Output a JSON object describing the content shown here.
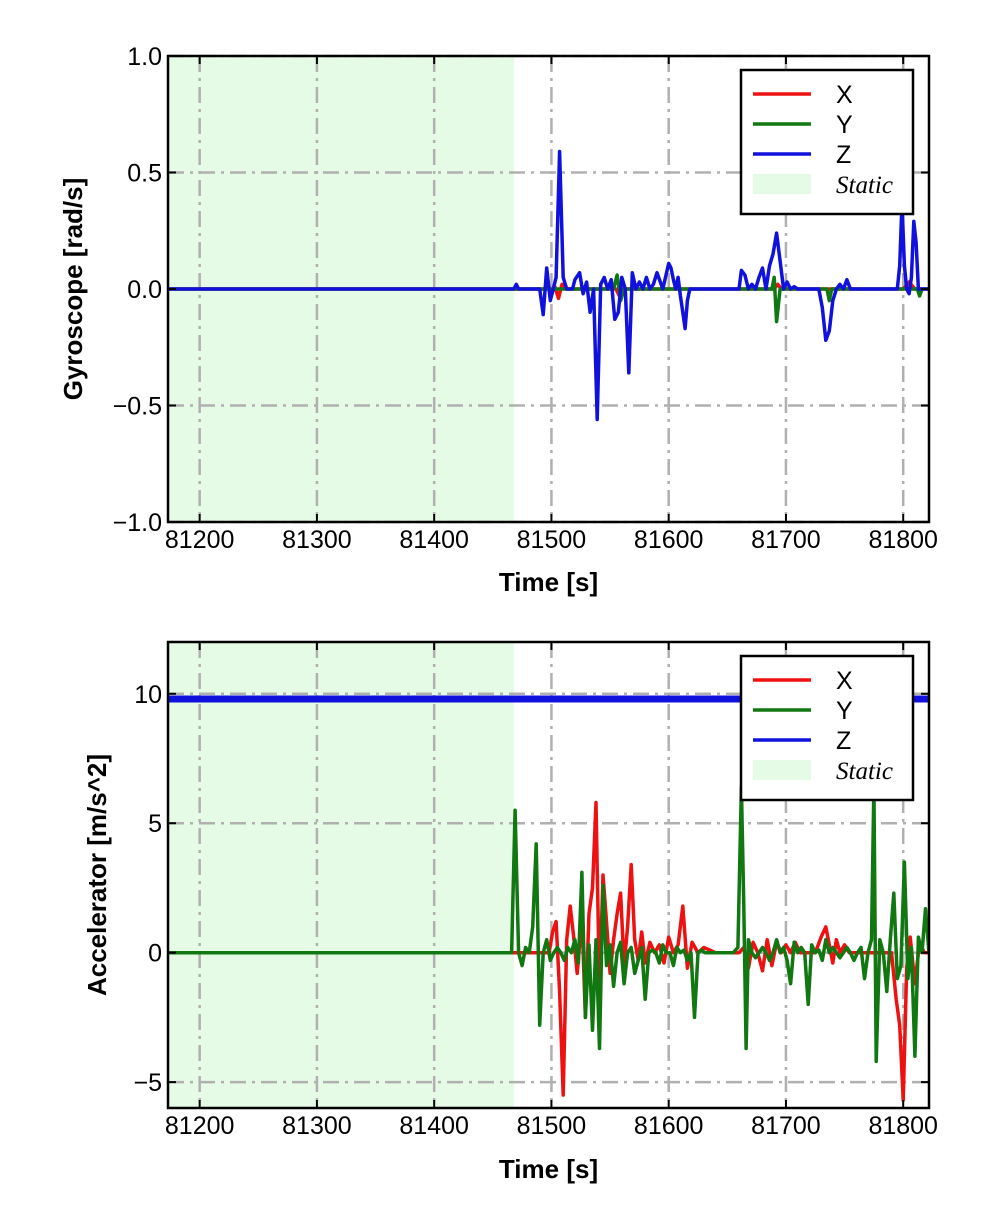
{
  "chart_data": [
    {
      "type": "line",
      "xlabel": "Time [s]",
      "ylabel": "Gyroscope [rad/s]",
      "xlim": [
        81173,
        81822
      ],
      "ylim": [
        -1.0,
        1.0
      ],
      "xticks": [
        81200,
        81300,
        81400,
        81500,
        81600,
        81700,
        81800
      ],
      "xtick_labels": [
        "81200",
        "81300",
        "81400",
        "81500",
        "81600",
        "81700",
        "81800"
      ],
      "yticks": [
        1.0,
        0.5,
        0.0,
        -0.5,
        -1.0
      ],
      "ytick_labels": [
        "1.0",
        "0.5",
        "0.0",
        "−0.5",
        "−1.0"
      ],
      "grid": true,
      "legend_position": "top-right",
      "static_region": {
        "label": "Static",
        "x_start": 81173,
        "x_end": 81468,
        "color": "#e6fbe6"
      },
      "series": [
        {
          "name": "X",
          "color": "#ee1111",
          "x": [
            81173,
            81495,
            81497,
            81500,
            81503,
            81506,
            81509,
            81512,
            81515,
            81555,
            81558,
            81561,
            81600,
            81615,
            81690,
            81693,
            81696,
            81800,
            81805,
            81810,
            81822
          ],
          "y": [
            0.0,
            0.0,
            0.02,
            -0.02,
            0.01,
            -0.04,
            0.02,
            0.0,
            0.0,
            0.0,
            -0.03,
            0.0,
            0.0,
            0.0,
            0.0,
            0.02,
            0.0,
            0.0,
            0.03,
            0.0,
            0.0
          ]
        },
        {
          "name": "Y",
          "color": "#117711",
          "x": [
            81173,
            81553,
            81556,
            81559,
            81562,
            81688,
            81690,
            81692,
            81695,
            81735,
            81737,
            81739,
            81812,
            81814,
            81816,
            81822
          ],
          "y": [
            0.0,
            0.0,
            0.06,
            -0.05,
            0.0,
            0.0,
            0.05,
            -0.14,
            0.0,
            0.0,
            -0.05,
            0.0,
            0.0,
            -0.03,
            0.0,
            0.0
          ]
        },
        {
          "name": "Z",
          "color": "#1111dd",
          "x": [
            81173,
            81468,
            81470,
            81472,
            81490,
            81493,
            81496,
            81499,
            81502,
            81504,
            81507,
            81510,
            81513,
            81518,
            81520,
            81524,
            81527,
            81530,
            81533,
            81536,
            81539,
            81542,
            81545,
            81548,
            81551,
            81554,
            81557,
            81560,
            81563,
            81566,
            81569,
            81572,
            81575,
            81578,
            81581,
            81584,
            81587,
            81590,
            81595,
            81600,
            81602,
            81604,
            81606,
            81608,
            81610,
            81612,
            81614,
            81616,
            81618,
            81620,
            81660,
            81662,
            81665,
            81668,
            81671,
            81674,
            81677,
            81680,
            81683,
            81686,
            81689,
            81692,
            81695,
            81698,
            81701,
            81704,
            81707,
            81710,
            81728,
            81731,
            81734,
            81737,
            81740,
            81743,
            81746,
            81749,
            81752,
            81755,
            81758,
            81795,
            81797,
            81799,
            81801,
            81803,
            81805,
            81807,
            81809,
            81811,
            81813,
            81815,
            81817,
            81820,
            81822
          ],
          "y": [
            0.0,
            0.0,
            0.02,
            0.0,
            0.0,
            -0.11,
            0.09,
            -0.05,
            0.01,
            0.05,
            0.59,
            0.05,
            0.0,
            0.0,
            0.04,
            0.07,
            -0.02,
            0.03,
            -0.1,
            0.0,
            -0.56,
            0.02,
            0.05,
            0.0,
            0.04,
            -0.13,
            -0.1,
            0.05,
            0.0,
            -0.36,
            0.07,
            0.0,
            0.03,
            0.0,
            0.05,
            0.0,
            0.02,
            0.07,
            0.0,
            0.11,
            0.09,
            0.04,
            0.0,
            0.05,
            -0.03,
            -0.1,
            -0.17,
            -0.05,
            0.0,
            0.0,
            0.0,
            0.08,
            0.06,
            0.0,
            0.02,
            0.0,
            0.05,
            0.09,
            0.0,
            0.1,
            0.15,
            0.24,
            0.12,
            0.0,
            0.03,
            0.0,
            0.01,
            0.0,
            0.0,
            -0.08,
            -0.22,
            -0.18,
            -0.05,
            0.0,
            0.02,
            0.0,
            0.04,
            0.0,
            0.0,
            0.0,
            0.1,
            0.37,
            0.1,
            0.0,
            -0.02,
            0.05,
            0.29,
            0.2,
            0.0,
            0.0,
            0.0,
            0.0,
            0.0
          ]
        }
      ]
    },
    {
      "type": "line",
      "xlabel": "Time [s]",
      "ylabel": "Accelerator [m/s^2]",
      "xlim": [
        81173,
        81822
      ],
      "ylim": [
        -6,
        12
      ],
      "xticks": [
        81200,
        81300,
        81400,
        81500,
        81600,
        81700,
        81800
      ],
      "xtick_labels": [
        "81200",
        "81300",
        "81400",
        "81500",
        "81600",
        "81700",
        "81800"
      ],
      "yticks": [
        10,
        5,
        0,
        -5
      ],
      "ytick_labels": [
        "10",
        "5",
        "0",
        "−5"
      ],
      "grid": true,
      "legend_position": "top-right",
      "static_region": {
        "label": "Static",
        "x_start": 81173,
        "x_end": 81468,
        "color": "#e6fbe6"
      },
      "series": [
        {
          "name": "X",
          "color": "#ee1111",
          "x": [
            81173,
            81465,
            81498,
            81501,
            81504,
            81507,
            81510,
            81513,
            81516,
            81519,
            81522,
            81526,
            81529,
            81532,
            81535,
            81538,
            81541,
            81544,
            81547,
            81550,
            81553,
            81556,
            81559,
            81562,
            81565,
            81568,
            81571,
            81574,
            81577,
            81580,
            81584,
            81588,
            81592,
            81596,
            81600,
            81604,
            81608,
            81612,
            81616,
            81620,
            81625,
            81630,
            81640,
            81660,
            81664,
            81668,
            81672,
            81676,
            81680,
            81684,
            81688,
            81692,
            81696,
            81700,
            81704,
            81708,
            81712,
            81725,
            81730,
            81734,
            81737,
            81740,
            81743,
            81746,
            81750,
            81754,
            81760,
            81790,
            81794,
            81797,
            81800,
            81803,
            81806,
            81810,
            81814,
            81818,
            81822
          ],
          "y": [
            0.0,
            0.0,
            0.0,
            0.8,
            1.2,
            -1.5,
            -5.5,
            0.5,
            1.8,
            0.6,
            -0.8,
            1.4,
            -2.5,
            1.5,
            2.5,
            5.8,
            -1.5,
            3.0,
            1.2,
            -0.8,
            0.5,
            1.5,
            2.3,
            -0.5,
            1.0,
            3.4,
            0.5,
            -0.3,
            0.8,
            -0.4,
            0.4,
            0.0,
            0.3,
            -0.4,
            0.6,
            0.0,
            0.3,
            1.8,
            -0.6,
            0.4,
            0.0,
            0.2,
            0.0,
            0.0,
            0.2,
            -0.6,
            0.4,
            0.0,
            -0.7,
            0.5,
            -0.5,
            0.4,
            0.0,
            0.3,
            0.0,
            0.4,
            0.0,
            0.0,
            0.6,
            1.0,
            0.3,
            -0.4,
            0.5,
            0.0,
            0.3,
            0.0,
            0.0,
            0.0,
            -1.8,
            -2.8,
            -5.7,
            -0.6,
            0.6,
            -1.2,
            0.4,
            0.0,
            0.0
          ]
        },
        {
          "name": "Y",
          "color": "#117711",
          "x": [
            81173,
            81466,
            81469,
            81472,
            81475,
            81478,
            81481,
            81484,
            81487,
            81490,
            81493,
            81496,
            81499,
            81502,
            81505,
            81508,
            81511,
            81514,
            81517,
            81520,
            81523,
            81526,
            81529,
            81532,
            81535,
            81538,
            81541,
            81544,
            81547,
            81550,
            81553,
            81556,
            81559,
            81562,
            81565,
            81568,
            81571,
            81574,
            81577,
            81580,
            81583,
            81586,
            81589,
            81592,
            81595,
            81598,
            81601,
            81604,
            81607,
            81610,
            81613,
            81616,
            81619,
            81622,
            81625,
            81628,
            81631,
            81655,
            81659,
            81662,
            81664,
            81666,
            81668,
            81671,
            81674,
            81677,
            81680,
            81683,
            81686,
            81689,
            81692,
            81695,
            81698,
            81701,
            81704,
            81707,
            81710,
            81713,
            81716,
            81719,
            81722,
            81725,
            81728,
            81731,
            81734,
            81737,
            81740,
            81743,
            81746,
            81749,
            81752,
            81755,
            81758,
            81761,
            81764,
            81767,
            81770,
            81773,
            81775,
            81777,
            81780,
            81783,
            81786,
            81789,
            81792,
            81795,
            81798,
            81801,
            81804,
            81807,
            81810,
            81813,
            81816,
            81819,
            81822
          ],
          "y": [
            0.0,
            0.0,
            5.5,
            0.0,
            -0.5,
            0.2,
            0.0,
            1.0,
            4.2,
            -2.8,
            0.0,
            0.5,
            -0.3,
            0.0,
            0.2,
            0.0,
            -0.3,
            0.2,
            0.0,
            0.5,
            -0.4,
            3.1,
            -2.5,
            0.3,
            -3.0,
            0.5,
            -3.7,
            2.6,
            -0.5,
            0.3,
            -1.3,
            0.0,
            0.4,
            -1.2,
            0.0,
            0.2,
            -0.8,
            -0.3,
            0.2,
            -1.8,
            0.0,
            0.1,
            0.0,
            -0.4,
            0.3,
            0.0,
            0.0,
            -0.5,
            0.2,
            0.0,
            0.1,
            -0.3,
            0.0,
            -2.5,
            0.0,
            0.1,
            0.0,
            0.0,
            0.2,
            6.4,
            2.0,
            -3.7,
            0.5,
            0.0,
            -0.2,
            0.0,
            0.2,
            0.0,
            -0.3,
            0.0,
            0.5,
            0.0,
            0.2,
            -0.3,
            -1.2,
            0.4,
            0.0,
            0.2,
            0.0,
            -2.0,
            0.3,
            0.0,
            0.1,
            -0.3,
            0.5,
            0.0,
            0.2,
            0.0,
            -0.2,
            0.0,
            0.2,
            0.0,
            -0.3,
            0.0,
            0.2,
            -1.0,
            0.0,
            0.5,
            6.5,
            -4.2,
            0.5,
            0.0,
            -1.5,
            0.5,
            2.3,
            -1.0,
            -0.5,
            3.5,
            -1.0,
            0.2,
            -4.0,
            0.6,
            0.0,
            1.7,
            0.0
          ]
        },
        {
          "name": "Z",
          "color": "#1111dd",
          "x": [
            81173,
            81822
          ],
          "y": [
            9.8,
            9.8
          ]
        }
      ]
    }
  ]
}
